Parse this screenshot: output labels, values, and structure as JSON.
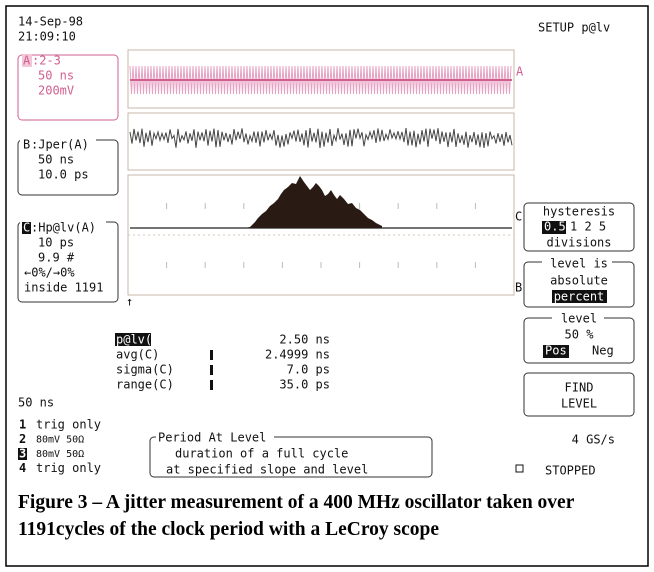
{
  "header": {
    "date": "14-Sep-98",
    "time": "21:09:10",
    "setup": "SETUP p@lv"
  },
  "traces": {
    "a": {
      "id": "A",
      "source": ":2-3",
      "timebase": "50 ns",
      "scale": "200mV"
    },
    "b": {
      "id": "B",
      "name": ":Jper(A)",
      "timebase": "50 ns",
      "scale": "10.0 ps"
    },
    "c": {
      "id": "C",
      "name": ":Hp@lv(A)",
      "lines": [
        "10 ps",
        "9.9 #",
        "←0%/→0%",
        "inside 1191"
      ]
    }
  },
  "measurements": [
    {
      "name": "p@lv(A)",
      "value": "2.50 ns"
    },
    {
      "name": "avg(C)",
      "value": "2.4999 ns"
    },
    {
      "name": "sigma(C)",
      "value": "7.0 ps"
    },
    {
      "name": "range(C)",
      "value": "35.0 ps"
    }
  ],
  "timebase": "50 ns",
  "channels": [
    {
      "num": "1",
      "text": "trig only"
    },
    {
      "num": "2",
      "text": "80mV  50Ω"
    },
    {
      "num": "3",
      "text": "80mV  50Ω"
    },
    {
      "num": "4",
      "text": "trig only"
    }
  ],
  "info_box": {
    "title": "Period At Level",
    "lines": [
      "duration of a full cycle",
      "at specified slope and level"
    ]
  },
  "menus": {
    "hysteresis": {
      "title": "hysteresis",
      "options": [
        "0.5",
        "1 2 5"
      ],
      "unit": "divisions"
    },
    "level_is": {
      "title": "level is",
      "options": [
        "absolute",
        "percent"
      ]
    },
    "level": {
      "title": "level",
      "value": "50 %",
      "options": [
        "Pos",
        "Neg"
      ]
    },
    "find": [
      "FIND",
      "LEVEL"
    ]
  },
  "status": {
    "rate": "4 GS/s",
    "state": "STOPPED"
  },
  "caption": "Figure 3 – A jitter measurement of a 400 MHz oscillator taken over 1191cycles of the clock period with a LeCroy scope"
}
